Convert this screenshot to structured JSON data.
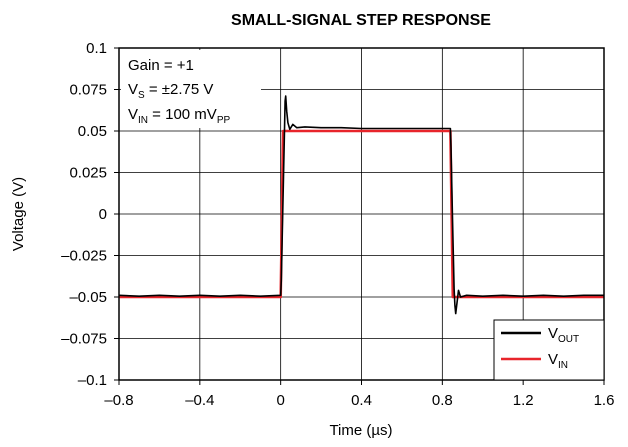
{
  "chart_data": {
    "type": "line",
    "title": "SMALL-SIGNAL STEP RESPONSE",
    "xlabel": "Time (µs)",
    "ylabel": "Voltage (V)",
    "xlim": [
      -0.8,
      1.6
    ],
    "ylim": [
      -0.1,
      0.1
    ],
    "x_ticks": [
      -0.8,
      -0.4,
      0,
      0.4,
      0.8,
      1.2,
      1.6
    ],
    "x_tick_labels": [
      "–0.8",
      "–0.4",
      "0",
      "0.4",
      "0.8",
      "1.2",
      "1.6"
    ],
    "y_ticks": [
      0.1,
      0.075,
      0.05,
      0.025,
      0,
      -0.025,
      -0.05,
      -0.075,
      -0.1
    ],
    "y_tick_labels": [
      "0.1",
      "0.075",
      "0.05",
      "0.025",
      "0",
      "–0.025",
      "–0.05",
      "–0.075",
      "–0.1"
    ],
    "grid": true,
    "legend_position": "bottom-right",
    "annotations": {
      "gain": {
        "text": "Gain = +1"
      },
      "vs": {
        "main": "V",
        "sub": "S",
        "rest": " = ±2.75 V"
      },
      "vin": {
        "main": "V",
        "sub": "IN",
        "rest": " = 100 mV",
        "sub2": "PP"
      }
    },
    "series": [
      {
        "name": "V",
        "name_sub": "OUT",
        "color": "#000000",
        "points": [
          [
            -0.8,
            -0.049
          ],
          [
            -0.7,
            -0.0495
          ],
          [
            -0.6,
            -0.049
          ],
          [
            -0.5,
            -0.0495
          ],
          [
            -0.4,
            -0.049
          ],
          [
            -0.3,
            -0.0495
          ],
          [
            -0.2,
            -0.049
          ],
          [
            -0.1,
            -0.0495
          ],
          [
            0.0,
            -0.049
          ],
          [
            0.003,
            -0.04
          ],
          [
            0.01,
            0.0
          ],
          [
            0.018,
            0.045
          ],
          [
            0.022,
            0.068
          ],
          [
            0.025,
            0.071
          ],
          [
            0.03,
            0.062
          ],
          [
            0.036,
            0.055
          ],
          [
            0.045,
            0.051
          ],
          [
            0.06,
            0.054
          ],
          [
            0.08,
            0.052
          ],
          [
            0.12,
            0.0525
          ],
          [
            0.2,
            0.052
          ],
          [
            0.3,
            0.052
          ],
          [
            0.4,
            0.0515
          ],
          [
            0.5,
            0.0515
          ],
          [
            0.6,
            0.0515
          ],
          [
            0.7,
            0.0515
          ],
          [
            0.8,
            0.0515
          ],
          [
            0.84,
            0.0515
          ],
          [
            0.843,
            0.04
          ],
          [
            0.85,
            0.0
          ],
          [
            0.858,
            -0.045
          ],
          [
            0.862,
            -0.055
          ],
          [
            0.866,
            -0.06
          ],
          [
            0.872,
            -0.054
          ],
          [
            0.88,
            -0.046
          ],
          [
            0.89,
            -0.05
          ],
          [
            0.92,
            -0.049
          ],
          [
            1.0,
            -0.0495
          ],
          [
            1.1,
            -0.049
          ],
          [
            1.2,
            -0.0495
          ],
          [
            1.3,
            -0.049
          ],
          [
            1.4,
            -0.0495
          ],
          [
            1.5,
            -0.049
          ],
          [
            1.6,
            -0.049
          ]
        ]
      },
      {
        "name": "V",
        "name_sub": "IN",
        "color": "#e8252b",
        "points": [
          [
            -0.8,
            -0.05
          ],
          [
            0.0,
            -0.05
          ],
          [
            0.012,
            0.05
          ],
          [
            0.84,
            0.05
          ],
          [
            0.852,
            -0.05
          ],
          [
            1.6,
            -0.05
          ]
        ]
      }
    ]
  }
}
